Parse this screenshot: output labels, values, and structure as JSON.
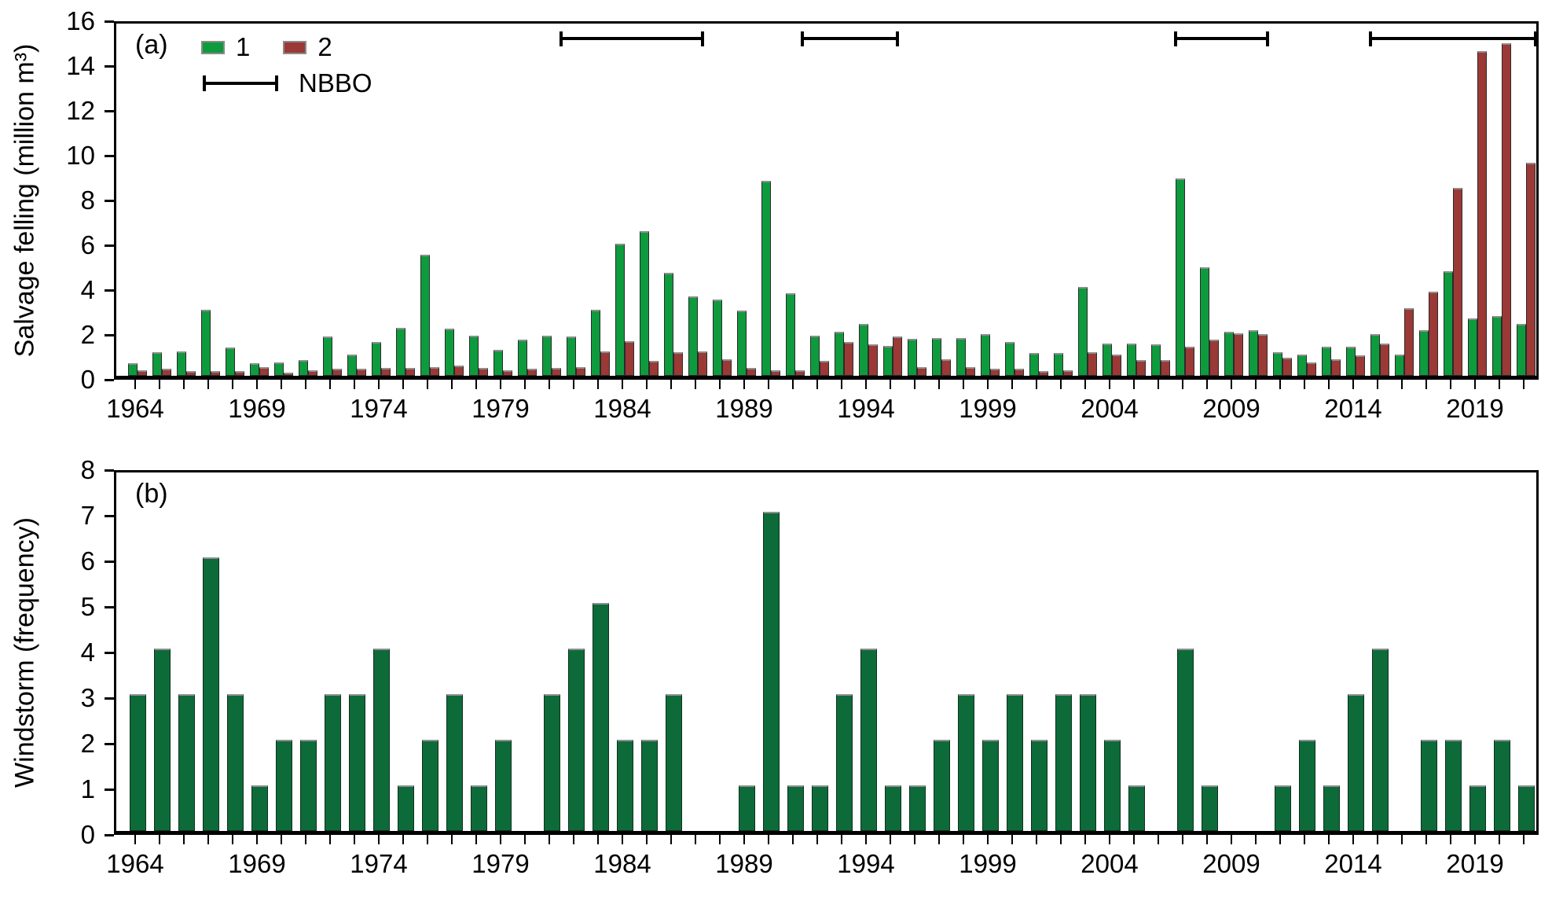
{
  "chart_data": [
    {
      "type": "bar",
      "panel": "a",
      "panel_label": "(a)",
      "ylabel": "Salvage felling (million m³)",
      "ylim": [
        0,
        16
      ],
      "yticks": [
        0,
        2,
        4,
        6,
        8,
        10,
        12,
        14,
        16
      ],
      "year_start": 1964,
      "year_end": 2021,
      "x_tick_labels": [
        "1964",
        "1969",
        "1974",
        "1979",
        "1984",
        "1989",
        "1994",
        "1999",
        "2004",
        "2009",
        "2014",
        "2019"
      ],
      "legend_nbbo_label": "NBBO",
      "grid": false,
      "legend_position": "top-left-inside",
      "series": [
        {
          "name": "1",
          "color": "#0e9b3e",
          "values": [
            0.55,
            1.05,
            1.1,
            2.95,
            1.25,
            0.55,
            0.6,
            0.7,
            1.75,
            0.95,
            1.5,
            2.15,
            5.4,
            2.1,
            1.8,
            1.15,
            1.6,
            1.8,
            1.75,
            2.95,
            5.9,
            6.45,
            4.6,
            3.55,
            3.4,
            2.9,
            8.7,
            3.7,
            1.8,
            1.95,
            2.3,
            1.35,
            1.65,
            1.7,
            1.7,
            1.85,
            1.5,
            1.0,
            1.0,
            3.95,
            1.45,
            1.45,
            1.4,
            8.8,
            4.85,
            1.95,
            2.05,
            1.05,
            0.95,
            1.3,
            1.3,
            1.85,
            0.95,
            2.05,
            4.65,
            2.55,
            2.65,
            2.3
          ]
        },
        {
          "name": "2",
          "color": "#9b3936",
          "values": [
            0.25,
            0.3,
            0.2,
            0.2,
            0.2,
            0.4,
            0.15,
            0.25,
            0.3,
            0.3,
            0.35,
            0.35,
            0.4,
            0.45,
            0.35,
            0.25,
            0.3,
            0.35,
            0.4,
            1.1,
            1.55,
            0.65,
            1.05,
            1.1,
            0.75,
            0.35,
            0.25,
            0.25,
            0.65,
            1.5,
            1.4,
            1.75,
            0.4,
            0.75,
            0.4,
            0.3,
            0.3,
            0.2,
            0.25,
            1.05,
            0.95,
            0.7,
            0.7,
            1.3,
            1.6,
            1.9,
            1.85,
            0.8,
            0.6,
            0.75,
            0.9,
            1.45,
            3.0,
            3.75,
            8.4,
            14.5,
            14.85,
            9.5
          ]
        }
      ],
      "nbbo_periods": [
        [
          1981.4,
          1987.2
        ],
        [
          1991.3,
          1995.2
        ],
        [
          2006.6,
          2010.4
        ],
        [
          2014.6,
          2021.4
        ]
      ]
    },
    {
      "type": "bar",
      "panel": "b",
      "panel_label": "(b)",
      "ylabel": "Windstorm (frequency)",
      "ylim": [
        0,
        8
      ],
      "yticks": [
        0,
        1,
        2,
        3,
        4,
        5,
        6,
        7,
        8
      ],
      "year_start": 1964,
      "year_end": 2021,
      "x_tick_labels": [
        "1964",
        "1969",
        "1974",
        "1979",
        "1984",
        "1989",
        "1994",
        "1999",
        "2004",
        "2009",
        "2014",
        "2019"
      ],
      "grid": false,
      "color": "#0d6b3a",
      "values": [
        3,
        4,
        3,
        6,
        3,
        1,
        2,
        2,
        3,
        3,
        4,
        1,
        2,
        3,
        1,
        2,
        0,
        3,
        4,
        5,
        2,
        2,
        3,
        0,
        0,
        1,
        7,
        1,
        1,
        3,
        4,
        1,
        1,
        2,
        3,
        2,
        3,
        2,
        3,
        3,
        2,
        1,
        0,
        4,
        1,
        0,
        0,
        1,
        2,
        1,
        3,
        4,
        0,
        2,
        2,
        1,
        2,
        1
      ]
    }
  ]
}
